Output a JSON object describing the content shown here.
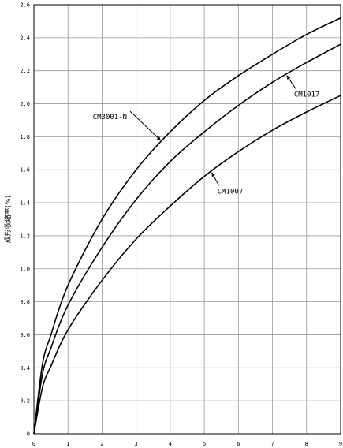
{
  "chart_data": {
    "type": "line",
    "title": "",
    "xlabel": "",
    "ylabel": "成形收缩率(%)",
    "xlim": [
      0,
      9
    ],
    "ylim": [
      0,
      2.6
    ],
    "grid": true,
    "x_ticks": [
      "0",
      "1",
      "2",
      "3",
      "4",
      "5",
      "6",
      "7",
      "8",
      "9"
    ],
    "y_ticks": [
      "0",
      "0.2",
      "0.4",
      "0.6",
      "0.8",
      "1.0",
      "1.2",
      "1.4",
      "1.6",
      "1.8",
      "2.0",
      "2.2",
      "2.4",
      "2.6"
    ],
    "series": [
      {
        "name": "CM3001-N",
        "x": [
          0,
          0.25,
          0.5,
          1,
          2,
          3,
          4,
          5,
          6,
          7,
          8,
          9
        ],
        "y": [
          0,
          0.42,
          0.6,
          0.9,
          1.3,
          1.6,
          1.83,
          2.02,
          2.17,
          2.3,
          2.42,
          2.52
        ]
      },
      {
        "name": "CM1017",
        "x": [
          0,
          0.25,
          0.5,
          1,
          2,
          3,
          4,
          5,
          6,
          7,
          8,
          9
        ],
        "y": [
          0,
          0.36,
          0.52,
          0.78,
          1.13,
          1.42,
          1.65,
          1.83,
          1.99,
          2.13,
          2.25,
          2.36
        ]
      },
      {
        "name": "CM1007",
        "x": [
          0,
          0.25,
          0.5,
          1,
          2,
          3,
          4,
          5,
          6,
          7,
          8,
          9
        ],
        "y": [
          0,
          0.28,
          0.41,
          0.63,
          0.93,
          1.18,
          1.38,
          1.56,
          1.71,
          1.84,
          1.95,
          2.05
        ]
      }
    ],
    "annotations": [
      {
        "text": "CM3001-N",
        "series": "CM3001-N",
        "at_x": 3.75
      },
      {
        "text": "CM1017",
        "series": "CM1017",
        "at_x": 7.4
      },
      {
        "text": "CM1007",
        "series": "CM1007",
        "at_x": 5.2
      }
    ]
  }
}
